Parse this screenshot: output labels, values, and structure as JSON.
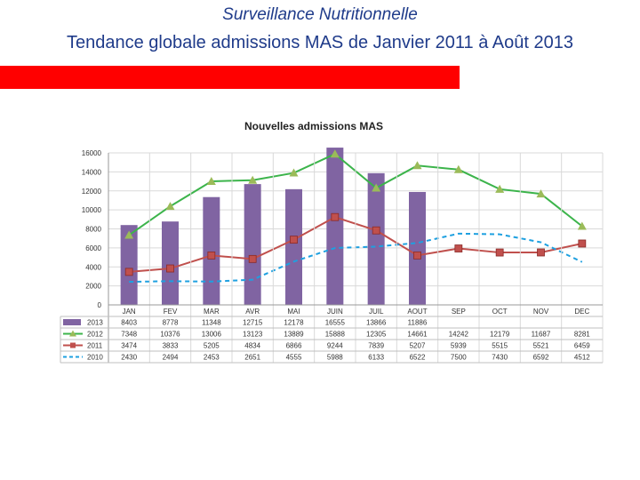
{
  "slide": {
    "title": "Surveillance Nutritionnelle",
    "subtitle": "Tendance globale admissions MAS de Janvier 2011 à Août 2013"
  },
  "colors": {
    "title": "#1f3b8a",
    "accent_bar": "#ff0000",
    "s2013": "#8064a2",
    "s2012": "#3cb44b",
    "s2012_marker": "#9bbb59",
    "s2011": "#c0504d",
    "s2010": "#1ea0e0",
    "grid": "#d9d9d9"
  },
  "chart_data": {
    "type": "bar+line",
    "title": "Nouvelles admissions MAS",
    "xlabel": "",
    "ylabel": "",
    "ylim": [
      0,
      16000
    ],
    "yticks": [
      "0",
      "2000",
      "4000",
      "6000",
      "8000",
      "10000",
      "12000",
      "14000",
      "16000"
    ],
    "categories": [
      "JAN",
      "FEV",
      "MAR",
      "AVR",
      "MAI",
      "JUIN",
      "JUIL",
      "AOUT",
      "SEP",
      "OCT",
      "NOV",
      "DEC"
    ],
    "series": [
      {
        "name": "2013",
        "kind": "bar",
        "values": [
          8403,
          8778,
          11348,
          12715,
          12178,
          16555,
          13866,
          11886,
          null,
          null,
          null,
          null
        ],
        "labels": [
          "8403",
          "8778",
          "11348",
          "12715",
          "12178",
          "16555",
          "13866",
          "11886",
          "",
          "",
          "",
          ""
        ]
      },
      {
        "name": "2012",
        "kind": "line",
        "marker": "triangle",
        "values": [
          7348,
          10376,
          13006,
          13123,
          13889,
          15888,
          12305,
          14661,
          14242,
          12179,
          11687,
          8281
        ],
        "labels": [
          "7348",
          "10376",
          "13006",
          "13123",
          "13889",
          "15888",
          "12305",
          "14661",
          "14242",
          "12179",
          "11687",
          "8281"
        ]
      },
      {
        "name": "2011",
        "kind": "line",
        "marker": "square",
        "values": [
          3474,
          3833,
          5205,
          4834,
          6866,
          9244,
          7839,
          5207,
          5939,
          5515,
          5521,
          6459
        ],
        "labels": [
          "3474",
          "3833",
          "5205",
          "4834",
          "6866",
          "9244",
          "7839",
          "5207",
          "5939",
          "5515",
          "5521",
          "6459"
        ]
      },
      {
        "name": "2010",
        "kind": "line",
        "dashed": true,
        "values": [
          2430,
          2494,
          2453,
          2651,
          4555,
          5988,
          6133,
          6522,
          7500,
          7430,
          6592,
          4512
        ],
        "labels": [
          "2430",
          "2494",
          "2453",
          "2651",
          "4555",
          "5988",
          "6133",
          "6522",
          "7500",
          "7430",
          "6592",
          "4512"
        ]
      }
    ]
  }
}
